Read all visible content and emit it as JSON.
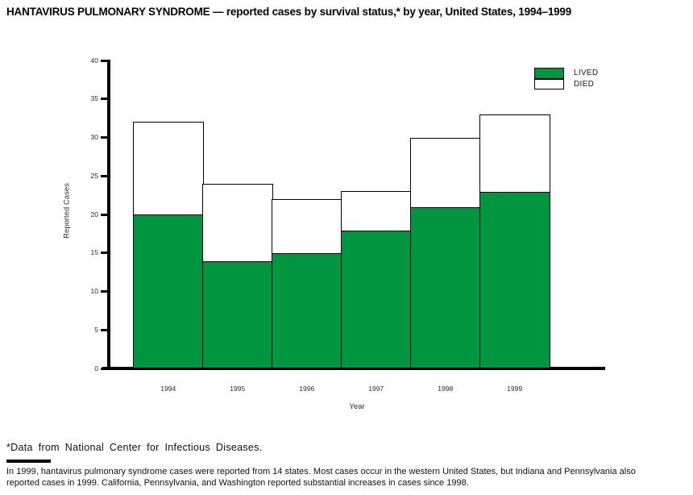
{
  "page": {
    "footnote": "*Data from National Center for Infectious Diseases.",
    "note_lines": [
      "In 1999, hantavirus pulmonary syndrome cases were reported from 14 states. Most cases occur in the western United States, but Indiana and Pennsylvania also",
      "reported cases in 1999. California, Pennsylvania, and Washington reported substantial increases in cases since 1998."
    ]
  },
  "chart_data": {
    "type": "bar",
    "stacked": true,
    "title": "HANTAVIRUS PULMONARY SYNDROME — reported cases by survival status,* by year, United States, 1994–1999",
    "categories": [
      "1994",
      "1995",
      "1996",
      "1997",
      "1998",
      "1999"
    ],
    "series": [
      {
        "name": "LIVED",
        "color": "#009640",
        "values": [
          20,
          14,
          15,
          18,
          21,
          23
        ]
      },
      {
        "name": "DIED",
        "color": "#ffffff",
        "values": [
          12,
          10,
          7,
          5,
          9,
          10
        ]
      }
    ],
    "totals": [
      32,
      24,
      22,
      23,
      30,
      33
    ],
    "xlabel": "Year",
    "ylabel": "Reported Cases",
    "ylim": [
      0,
      40
    ],
    "ytick_step": 5,
    "grid": false,
    "legend_position": "top-right"
  }
}
